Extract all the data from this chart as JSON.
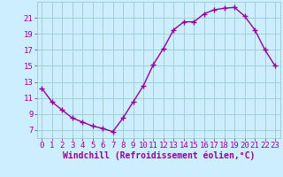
{
  "x": [
    0,
    1,
    2,
    3,
    4,
    5,
    6,
    7,
    8,
    9,
    10,
    11,
    12,
    13,
    14,
    15,
    16,
    17,
    18,
    19,
    20,
    21,
    22,
    23
  ],
  "y": [
    12.2,
    10.5,
    9.5,
    8.5,
    8.0,
    7.5,
    7.2,
    6.8,
    8.5,
    10.5,
    12.5,
    15.2,
    17.2,
    19.5,
    20.5,
    20.5,
    21.5,
    22.0,
    22.2,
    22.3,
    21.2,
    19.5,
    17.0,
    15.0
  ],
  "line_color": "#990099",
  "marker": "+",
  "marker_size": 4,
  "marker_linewidth": 1.0,
  "line_width": 1.0,
  "bg_color": "#cceeff",
  "grid_color": "#99cccc",
  "xlabel": "Windchill (Refroidissement éolien,°C)",
  "label_color": "#990099",
  "ylabel_ticks": [
    7,
    9,
    11,
    13,
    15,
    17,
    19,
    21
  ],
  "xtick_labels": [
    "0",
    "1",
    "2",
    "3",
    "4",
    "5",
    "6",
    "7",
    "8",
    "9",
    "10",
    "11",
    "12",
    "13",
    "14",
    "15",
    "16",
    "17",
    "18",
    "19",
    "20",
    "21",
    "22",
    "23"
  ],
  "ylim": [
    6.0,
    23.0
  ],
  "xlim": [
    -0.5,
    23.5
  ],
  "tick_fontsize": 6.5,
  "label_fontsize": 7.0
}
